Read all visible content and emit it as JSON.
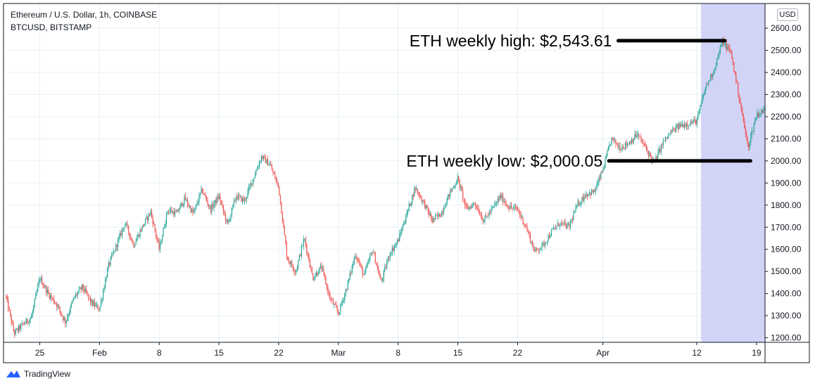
{
  "legend": {
    "line1": "Ethereum / U.S. Dollar, 1h, COINBASE",
    "line2": "BTCUSD, BITSTAMP"
  },
  "currency_badge": "USD",
  "footer": {
    "brand": "TradingView"
  },
  "colors": {
    "up": "#26a69a",
    "down": "#ef5350",
    "highlight": "#d1d4f7",
    "grid": "#e6f0f5",
    "annotation_line": "#000000"
  },
  "chart_data": {
    "type": "candlestick",
    "title": "Ethereum / U.S. Dollar, 1h, COINBASE",
    "ylim": [
      1180,
      2650
    ],
    "y_ticks": [
      "2600.00",
      "2500.00",
      "2400.00",
      "2300.00",
      "2200.00",
      "2100.00",
      "2000.00",
      "1900.00",
      "1800.00",
      "1700.00",
      "1600.00",
      "1500.00",
      "1400.00",
      "1300.00",
      "1200.00"
    ],
    "y_tick_values": [
      2600,
      2500,
      2400,
      2300,
      2200,
      2100,
      2000,
      1900,
      1800,
      1700,
      1600,
      1500,
      1400,
      1300,
      1200
    ],
    "x_days": [
      0,
      89
    ],
    "x_ticks": [
      {
        "label": "25",
        "day": 4
      },
      {
        "label": "Feb",
        "day": 11
      },
      {
        "label": "8",
        "day": 18
      },
      {
        "label": "15",
        "day": 25
      },
      {
        "label": "22",
        "day": 32
      },
      {
        "label": "Mar",
        "day": 39
      },
      {
        "label": "8",
        "day": 46
      },
      {
        "label": "15",
        "day": 53
      },
      {
        "label": "22",
        "day": 60
      },
      {
        "label": "Apr",
        "day": 70
      },
      {
        "label": "12",
        "day": 81
      },
      {
        "label": "19",
        "day": 88
      }
    ],
    "highlight_range_days": [
      81.5,
      89
    ],
    "price_path": [
      [
        0,
        1390
      ],
      [
        1,
        1220
      ],
      [
        2,
        1260
      ],
      [
        3,
        1290
      ],
      [
        4,
        1470
      ],
      [
        5,
        1400
      ],
      [
        6,
        1350
      ],
      [
        7,
        1270
      ],
      [
        8,
        1380
      ],
      [
        9,
        1430
      ],
      [
        10,
        1360
      ],
      [
        11,
        1330
      ],
      [
        12,
        1520
      ],
      [
        13,
        1620
      ],
      [
        14,
        1720
      ],
      [
        15,
        1620
      ],
      [
        16,
        1700
      ],
      [
        17,
        1770
      ],
      [
        18,
        1600
      ],
      [
        19,
        1780
      ],
      [
        20,
        1760
      ],
      [
        21,
        1830
      ],
      [
        22,
        1760
      ],
      [
        23,
        1870
      ],
      [
        24,
        1780
      ],
      [
        25,
        1840
      ],
      [
        26,
        1710
      ],
      [
        27,
        1840
      ],
      [
        28,
        1820
      ],
      [
        29,
        1920
      ],
      [
        30,
        2020
      ],
      [
        31,
        1980
      ],
      [
        32,
        1880
      ],
      [
        33,
        1560
      ],
      [
        34,
        1500
      ],
      [
        35,
        1650
      ],
      [
        36,
        1470
      ],
      [
        37,
        1520
      ],
      [
        38,
        1380
      ],
      [
        39,
        1310
      ],
      [
        40,
        1430
      ],
      [
        41,
        1580
      ],
      [
        42,
        1480
      ],
      [
        43,
        1600
      ],
      [
        44,
        1450
      ],
      [
        45,
        1580
      ],
      [
        46,
        1640
      ],
      [
        47,
        1760
      ],
      [
        48,
        1880
      ],
      [
        49,
        1810
      ],
      [
        50,
        1730
      ],
      [
        51,
        1760
      ],
      [
        52,
        1850
      ],
      [
        53,
        1920
      ],
      [
        54,
        1780
      ],
      [
        55,
        1810
      ],
      [
        56,
        1730
      ],
      [
        57,
        1780
      ],
      [
        58,
        1840
      ],
      [
        59,
        1790
      ],
      [
        60,
        1780
      ],
      [
        61,
        1700
      ],
      [
        62,
        1590
      ],
      [
        63,
        1620
      ],
      [
        64,
        1680
      ],
      [
        65,
        1720
      ],
      [
        66,
        1700
      ],
      [
        67,
        1800
      ],
      [
        68,
        1850
      ],
      [
        69,
        1860
      ],
      [
        70,
        1960
      ],
      [
        71,
        2100
      ],
      [
        72,
        2060
      ],
      [
        73,
        2080
      ],
      [
        74,
        2120
      ],
      [
        75,
        2060
      ],
      [
        76,
        1990
      ],
      [
        77,
        2080
      ],
      [
        78,
        2130
      ],
      [
        79,
        2160
      ],
      [
        80,
        2170
      ],
      [
        81,
        2180
      ],
      [
        82,
        2330
      ],
      [
        83,
        2410
      ],
      [
        84,
        2540
      ],
      [
        85,
        2490
      ],
      [
        86,
        2280
      ],
      [
        87,
        2060
      ],
      [
        88,
        2210
      ],
      [
        89,
        2230
      ]
    ],
    "annotations": [
      {
        "text": "ETH weekly high: $2,543.61",
        "value": 2543.61,
        "line_from_day": 71.8,
        "line_to_day": 84.3
      },
      {
        "text": "ETH weekly low: $2,000.05",
        "value": 2000.05,
        "line_from_day": 70.7,
        "line_to_day": 87.3
      }
    ]
  }
}
